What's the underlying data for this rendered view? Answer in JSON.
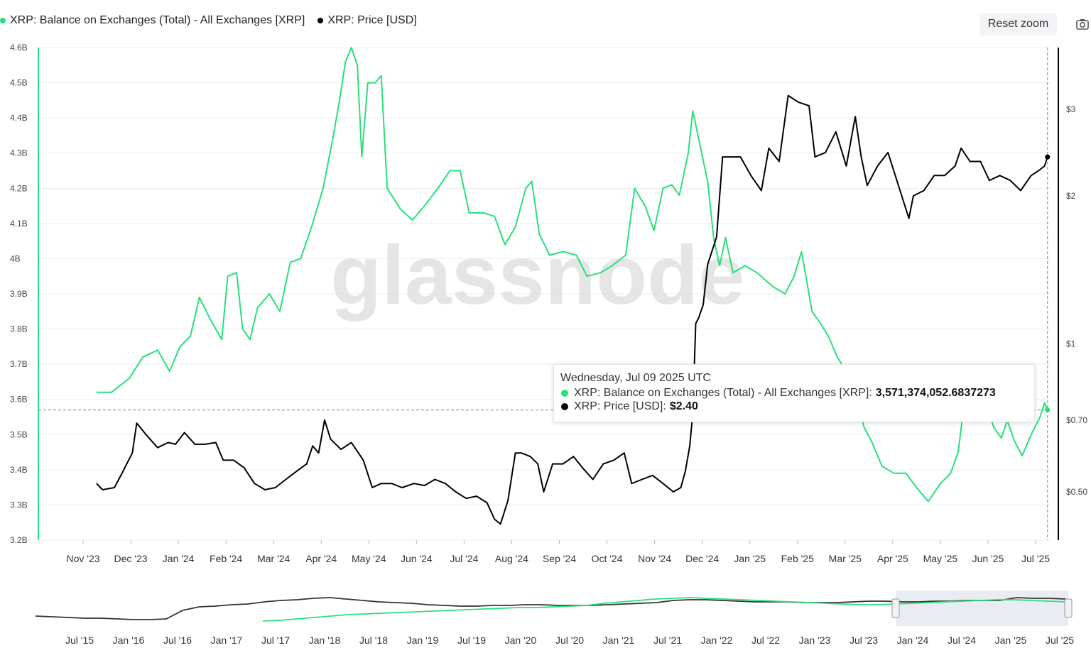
{
  "legend": {
    "items": [
      {
        "label": "XRP: Balance on Exchanges (Total) - All Exchanges [XRP]",
        "color": "#28e07a"
      },
      {
        "label": "XRP: Price [USD]",
        "color": "#000000"
      }
    ]
  },
  "toolbar": {
    "reset_zoom_label": "Reset zoom",
    "export_icon": "camera-icon"
  },
  "watermark": "glassnode",
  "tooltip": {
    "date": "Wednesday, Jul 09 2025 UTC",
    "rows": [
      {
        "label": "XRP: Balance on Exchanges (Total) - All Exchanges [XRP]:",
        "value": "3,571,374,052.6837273",
        "color": "#28e07a"
      },
      {
        "label": "XRP: Price [USD]:",
        "value": "$2.40",
        "color": "#000000"
      }
    ]
  },
  "chart_data": [
    {
      "type": "line",
      "left_axis": {
        "ticks": [
          "3.2B",
          "3.3B",
          "3.4B",
          "3.5B",
          "3.6B",
          "3.7B",
          "3.8B",
          "3.9B",
          "4B",
          "4.1B",
          "4.2B",
          "4.3B",
          "4.4B",
          "4.5B",
          "4.6B"
        ],
        "ylim": [
          3200000000,
          4600000000
        ]
      },
      "right_axis": {
        "scale": "log",
        "ticks": [
          "$0.50",
          "$0.70",
          "$1",
          "$2",
          "$3"
        ],
        "tick_values": [
          0.5,
          0.7,
          1,
          2,
          3
        ]
      },
      "x_ticks": [
        "Nov '23",
        "Dec '23",
        "Jan '24",
        "Feb '24",
        "Mar '24",
        "Apr '24",
        "May '24",
        "Jun '24",
        "Jul '24",
        "Aug '24",
        "Sep '24",
        "Oct '24",
        "Nov '24",
        "Dec '24",
        "Jan '25",
        "Feb '25",
        "Mar '25",
        "Apr '25",
        "May '25",
        "Jun '25",
        "Jul '25"
      ],
      "grid": true,
      "series": [
        {
          "name": "XRP: Balance on Exchanges (Total) - All Exchanges [XRP]",
          "color": "#28e07a",
          "axis": "left",
          "points": [
            [
              "2023-10-10",
              3620000000.0
            ],
            [
              "2023-10-20",
              3620000000.0
            ],
            [
              "2023-11-01",
              3660000000.0
            ],
            [
              "2023-11-10",
              3720000000.0
            ],
            [
              "2023-11-20",
              3740000000.0
            ],
            [
              "2023-11-28",
              3680000000.0
            ],
            [
              "2023-12-05",
              3750000000.0
            ],
            [
              "2023-12-12",
              3780000000.0
            ],
            [
              "2023-12-18",
              3890000000.0
            ],
            [
              "2023-12-25",
              3830000000.0
            ],
            [
              "2024-01-02",
              3770000000.0
            ],
            [
              "2024-01-06",
              3950000000.0
            ],
            [
              "2024-01-12",
              3960000000.0
            ],
            [
              "2024-01-16",
              3800000000.0
            ],
            [
              "2024-01-21",
              3770000000.0
            ],
            [
              "2024-01-26",
              3860000000.0
            ],
            [
              "2024-02-03",
              3900000000.0
            ],
            [
              "2024-02-10",
              3850000000.0
            ],
            [
              "2024-02-17",
              3990000000.0
            ],
            [
              "2024-02-24",
              4000000000.0
            ],
            [
              "2024-03-03",
              4100000000.0
            ],
            [
              "2024-03-10",
              4200000000.0
            ],
            [
              "2024-03-16",
              4330000000.0
            ],
            [
              "2024-03-21",
              4450000000.0
            ],
            [
              "2024-03-25",
              4560000000.0
            ],
            [
              "2024-03-29",
              4600000000.0
            ],
            [
              "2024-04-02",
              4550000000.0
            ],
            [
              "2024-04-05",
              4290000000.0
            ],
            [
              "2024-04-09",
              4500000000.0
            ],
            [
              "2024-04-14",
              4500000000.0
            ],
            [
              "2024-04-18",
              4520000000.0
            ],
            [
              "2024-04-22",
              4200000000.0
            ],
            [
              "2024-05-01",
              4140000000.0
            ],
            [
              "2024-05-09",
              4110000000.0
            ],
            [
              "2024-05-17",
              4150000000.0
            ],
            [
              "2024-05-26",
              4200000000.0
            ],
            [
              "2024-06-03",
              4250000000.0
            ],
            [
              "2024-06-10",
              4250000000.0
            ],
            [
              "2024-06-16",
              4130000000.0
            ],
            [
              "2024-06-26",
              4130000000.0
            ],
            [
              "2024-07-03",
              4120000000.0
            ],
            [
              "2024-07-10",
              4040000000.0
            ],
            [
              "2024-07-17",
              4090000000.0
            ],
            [
              "2024-07-24",
              4200000000.0
            ],
            [
              "2024-07-28",
              4220000000.0
            ],
            [
              "2024-08-02",
              4070000000.0
            ],
            [
              "2024-08-09",
              4010000000.0
            ],
            [
              "2024-08-18",
              4020000000.0
            ],
            [
              "2024-08-27",
              4010000000.0
            ],
            [
              "2024-09-03",
              3950000000.0
            ],
            [
              "2024-09-12",
              3960000000.0
            ],
            [
              "2024-09-20",
              3980000000.0
            ],
            [
              "2024-09-29",
              4010000000.0
            ],
            [
              "2024-10-05",
              4200000000.0
            ],
            [
              "2024-10-12",
              4150000000.0
            ],
            [
              "2024-10-18",
              4080000000.0
            ],
            [
              "2024-10-24",
              4200000000.0
            ],
            [
              "2024-10-30",
              4210000000.0
            ],
            [
              "2024-11-04",
              4180000000.0
            ],
            [
              "2024-11-10",
              4300000000.0
            ],
            [
              "2024-11-13",
              4420000000.0
            ],
            [
              "2024-11-18",
              4320000000.0
            ],
            [
              "2024-11-23",
              4220000000.0
            ],
            [
              "2024-11-27",
              4060000000.0
            ],
            [
              "2024-12-01",
              3980000000.0
            ],
            [
              "2024-12-05",
              4060000000.0
            ],
            [
              "2024-12-10",
              3960000000.0
            ],
            [
              "2024-12-18",
              3980000000.0
            ],
            [
              "2024-12-26",
              3960000000.0
            ],
            [
              "2025-01-06",
              3920000000.0
            ],
            [
              "2025-01-14",
              3900000000.0
            ],
            [
              "2025-01-20",
              3950000000.0
            ],
            [
              "2025-01-25",
              4020000000.0
            ],
            [
              "2025-02-01",
              3850000000.0
            ],
            [
              "2025-02-06",
              3820000000.0
            ],
            [
              "2025-02-12",
              3780000000.0
            ],
            [
              "2025-02-18",
              3720000000.0
            ],
            [
              "2025-02-24",
              3680000000.0
            ],
            [
              "2025-03-01",
              3620000000.0
            ],
            [
              "2025-03-08",
              3520000000.0
            ],
            [
              "2025-03-13",
              3480000000.0
            ],
            [
              "2025-03-20",
              3410000000.0
            ],
            [
              "2025-03-28",
              3390000000.0
            ],
            [
              "2025-04-05",
              3390000000.0
            ],
            [
              "2025-04-12",
              3350000000.0
            ],
            [
              "2025-04-20",
              3310000000.0
            ],
            [
              "2025-04-28",
              3360000000.0
            ],
            [
              "2025-05-05",
              3390000000.0
            ],
            [
              "2025-05-10",
              3450000000.0
            ],
            [
              "2025-05-13",
              3550000000.0
            ],
            [
              "2025-05-17",
              3620000000.0
            ],
            [
              "2025-05-22",
              3640000000.0
            ],
            [
              "2025-05-28",
              3600000000.0
            ],
            [
              "2025-06-03",
              3520000000.0
            ],
            [
              "2025-06-08",
              3490000000.0
            ],
            [
              "2025-06-12",
              3540000000.0
            ],
            [
              "2025-06-17",
              3480000000.0
            ],
            [
              "2025-06-22",
              3440000000.0
            ],
            [
              "2025-06-28",
              3500000000.0
            ],
            [
              "2025-07-04",
              3550000000.0
            ],
            [
              "2025-07-07",
              3590000000.0
            ],
            [
              "2025-07-09",
              3570000000.0
            ]
          ]
        },
        {
          "name": "XRP: Price [USD]",
          "color": "#000000",
          "axis": "right",
          "points": [
            [
              "2023-10-10",
              0.52
            ],
            [
              "2023-10-14",
              0.505
            ],
            [
              "2023-10-22",
              0.51
            ],
            [
              "2023-10-27",
              0.545
            ],
            [
              "2023-11-03",
              0.6
            ],
            [
              "2023-11-06",
              0.69
            ],
            [
              "2023-11-12",
              0.655
            ],
            [
              "2023-11-20",
              0.615
            ],
            [
              "2023-11-27",
              0.63
            ],
            [
              "2023-12-02",
              0.625
            ],
            [
              "2023-12-08",
              0.66
            ],
            [
              "2023-12-15",
              0.625
            ],
            [
              "2023-12-22",
              0.625
            ],
            [
              "2023-12-29",
              0.63
            ],
            [
              "2024-01-03",
              0.58
            ],
            [
              "2024-01-10",
              0.58
            ],
            [
              "2024-01-17",
              0.56
            ],
            [
              "2024-01-24",
              0.52
            ],
            [
              "2024-01-31",
              0.505
            ],
            [
              "2024-02-07",
              0.51
            ],
            [
              "2024-02-14",
              0.53
            ],
            [
              "2024-02-21",
              0.55
            ],
            [
              "2024-02-28",
              0.57
            ],
            [
              "2024-03-03",
              0.62
            ],
            [
              "2024-03-07",
              0.6
            ],
            [
              "2024-03-11",
              0.7
            ],
            [
              "2024-03-15",
              0.64
            ],
            [
              "2024-03-22",
              0.61
            ],
            [
              "2024-03-29",
              0.63
            ],
            [
              "2024-04-06",
              0.58
            ],
            [
              "2024-04-12",
              0.51
            ],
            [
              "2024-04-18",
              0.52
            ],
            [
              "2024-04-25",
              0.52
            ],
            [
              "2024-05-02",
              0.51
            ],
            [
              "2024-05-10",
              0.52
            ],
            [
              "2024-05-17",
              0.515
            ],
            [
              "2024-05-24",
              0.53
            ],
            [
              "2024-05-31",
              0.52
            ],
            [
              "2024-06-07",
              0.5
            ],
            [
              "2024-06-14",
              0.485
            ],
            [
              "2024-06-21",
              0.49
            ],
            [
              "2024-06-28",
              0.475
            ],
            [
              "2024-07-03",
              0.44
            ],
            [
              "2024-07-07",
              0.43
            ],
            [
              "2024-07-12",
              0.48
            ],
            [
              "2024-07-17",
              0.6
            ],
            [
              "2024-07-21",
              0.6
            ],
            [
              "2024-07-27",
              0.59
            ],
            [
              "2024-08-01",
              0.57
            ],
            [
              "2024-08-05",
              0.5
            ],
            [
              "2024-08-11",
              0.57
            ],
            [
              "2024-08-18",
              0.57
            ],
            [
              "2024-08-25",
              0.59
            ],
            [
              "2024-08-31",
              0.56
            ],
            [
              "2024-09-07",
              0.53
            ],
            [
              "2024-09-14",
              0.57
            ],
            [
              "2024-09-21",
              0.58
            ],
            [
              "2024-09-28",
              0.6
            ],
            [
              "2024-10-03",
              0.52
            ],
            [
              "2024-10-10",
              0.53
            ],
            [
              "2024-10-17",
              0.54
            ],
            [
              "2024-10-24",
              0.52
            ],
            [
              "2024-10-31",
              0.5
            ],
            [
              "2024-11-05",
              0.51
            ],
            [
              "2024-11-08",
              0.55
            ],
            [
              "2024-11-11",
              0.62
            ],
            [
              "2024-11-13",
              0.72
            ],
            [
              "2024-11-15",
              1.1
            ],
            [
              "2024-11-17",
              1.13
            ],
            [
              "2024-11-20",
              1.2
            ],
            [
              "2024-11-23",
              1.45
            ],
            [
              "2024-11-29",
              1.65
            ],
            [
              "2024-12-03",
              2.4
            ],
            [
              "2024-12-08",
              2.4
            ],
            [
              "2024-12-15",
              2.4
            ],
            [
              "2024-12-22",
              2.2
            ],
            [
              "2024-12-29",
              2.05
            ],
            [
              "2025-01-03",
              2.5
            ],
            [
              "2025-01-10",
              2.35
            ],
            [
              "2025-01-16",
              3.2
            ],
            [
              "2025-01-23",
              3.1
            ],
            [
              "2025-01-30",
              3.05
            ],
            [
              "2025-02-03",
              2.4
            ],
            [
              "2025-02-10",
              2.45
            ],
            [
              "2025-02-17",
              2.7
            ],
            [
              "2025-02-24",
              2.3
            ],
            [
              "2025-03-02",
              2.9
            ],
            [
              "2025-03-06",
              2.4
            ],
            [
              "2025-03-10",
              2.1
            ],
            [
              "2025-03-17",
              2.3
            ],
            [
              "2025-03-24",
              2.45
            ],
            [
              "2025-03-31",
              2.1
            ],
            [
              "2025-04-07",
              1.8
            ],
            [
              "2025-04-10",
              2.0
            ],
            [
              "2025-04-17",
              2.05
            ],
            [
              "2025-04-24",
              2.2
            ],
            [
              "2025-05-01",
              2.2
            ],
            [
              "2025-05-08",
              2.3
            ],
            [
              "2025-05-12",
              2.5
            ],
            [
              "2025-05-18",
              2.35
            ],
            [
              "2025-05-25",
              2.35
            ],
            [
              "2025-05-31",
              2.15
            ],
            [
              "2025-06-07",
              2.2
            ],
            [
              "2025-06-14",
              2.15
            ],
            [
              "2025-06-21",
              2.05
            ],
            [
              "2025-06-28",
              2.2
            ],
            [
              "2025-07-03",
              2.25
            ],
            [
              "2025-07-07",
              2.3
            ],
            [
              "2025-07-09",
              2.4
            ]
          ]
        }
      ]
    },
    {
      "type": "line",
      "x_ticks": [
        "Jul '15",
        "Jan '16",
        "Jul '16",
        "Jan '17",
        "Jul '17",
        "Jan '18",
        "Jul '18",
        "Jan '19",
        "Jul '19",
        "Jan '20",
        "Jul '20",
        "Jan '21",
        "Jul '21",
        "Jan '22",
        "Jul '22",
        "Jan '23",
        "Jul '23",
        "Jan '24",
        "Jul '24",
        "Jan '25",
        "Jul '25"
      ]
    }
  ]
}
